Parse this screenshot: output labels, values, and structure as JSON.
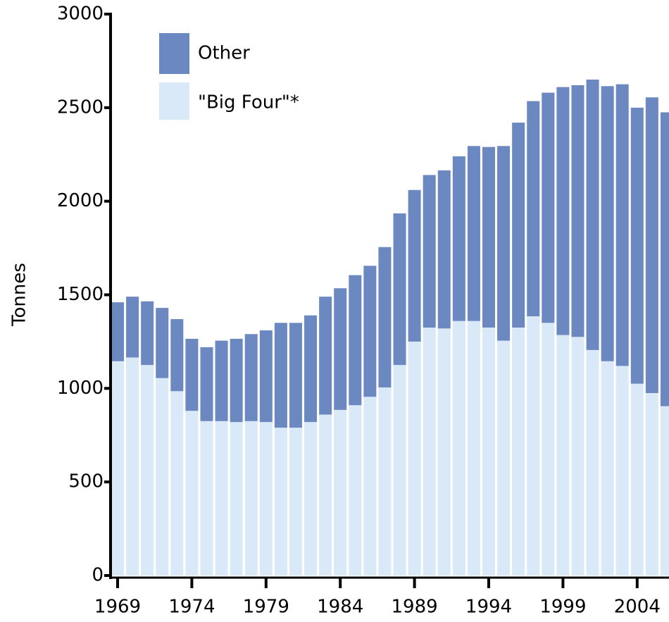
{
  "chart_data": {
    "type": "stacked_bar",
    "y_label": "Tonnes",
    "categories": [
      "1969",
      null,
      null,
      null,
      null,
      "1974",
      null,
      null,
      null,
      null,
      "1979",
      null,
      null,
      null,
      null,
      "1984",
      null,
      null,
      null,
      null,
      "1989",
      null,
      null,
      null,
      null,
      "1994",
      null,
      null,
      null,
      null,
      "1999",
      null,
      null,
      null,
      null,
      "2004",
      null,
      null
    ],
    "series": [
      {
        "name": "\"Big Four\"*",
        "color": "#d9e9f7",
        "values": [
          1145,
          1165,
          1125,
          1055,
          985,
          880,
          825,
          825,
          820,
          825,
          820,
          790,
          790,
          820,
          860,
          885,
          910,
          955,
          1005,
          1125,
          1250,
          1325,
          1320,
          1360,
          1360,
          1325,
          1255,
          1325,
          1385,
          1350,
          1285,
          1275,
          1205,
          1145,
          1120,
          1025,
          975,
          905
        ]
      },
      {
        "name": "Other",
        "color": "#6b88c0",
        "values": [
          315,
          325,
          340,
          375,
          385,
          385,
          395,
          430,
          445,
          465,
          490,
          560,
          560,
          570,
          630,
          650,
          695,
          700,
          750,
          810,
          810,
          815,
          845,
          880,
          935,
          965,
          1040,
          1095,
          1150,
          1230,
          1325,
          1345,
          1445,
          1470,
          1505,
          1475,
          1580,
          1570
        ]
      }
    ],
    "ylim": [
      0,
      3000
    ],
    "yticks": [
      0,
      500,
      1000,
      1500,
      2000,
      2500,
      3000
    ],
    "legend": "top-left"
  }
}
